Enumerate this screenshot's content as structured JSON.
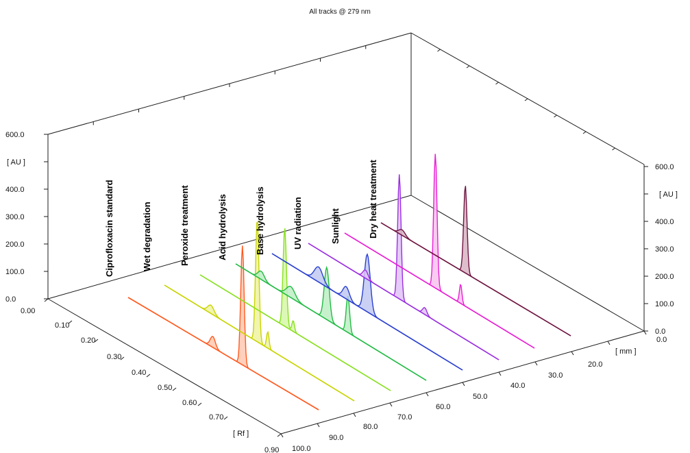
{
  "chart_data": {
    "type": "line",
    "title": "All tracks @ 279 nm",
    "y_axis": {
      "unit_label": "[ AU ]",
      "ticks": [
        "0.0",
        "100.0",
        "200.0",
        "300.0",
        "400.0",
        "600.0"
      ],
      "right_ticks": [
        "0.0",
        "100.0",
        "200.0",
        "300.0",
        "400.0",
        "600.0"
      ],
      "ylim": [
        0,
        600
      ]
    },
    "rf_axis": {
      "unit_label": "[ Rf ]",
      "ticks": [
        "0.00",
        "0.10",
        "0.20",
        "0.30",
        "0.40",
        "0.50",
        "0.60",
        "0.70",
        "0.90"
      ],
      "xlim": [
        0,
        0.9
      ]
    },
    "mm_axis": {
      "unit_label": "[ mm ]",
      "ticks": [
        "0.0",
        "20.0",
        "30.0",
        "40.0",
        "50.0",
        "60.0",
        "70.0",
        "80.0",
        "90.0",
        "100.0"
      ],
      "zlim": [
        0,
        100
      ]
    },
    "series": [
      {
        "name": "Ciprofloxacin standard",
        "color": "#ff5a1f",
        "fill": "#ffc8b0",
        "peaks": [
          {
            "rf": 0.4,
            "height": 40,
            "width": 0.012
          },
          {
            "rf": 0.54,
            "height": 435,
            "width": 0.008
          }
        ]
      },
      {
        "name": "Wet degradation",
        "color": "#c8d400",
        "fill": "#eef3a0",
        "peaks": [
          {
            "rf": 0.22,
            "height": 30,
            "width": 0.015
          },
          {
            "rf": 0.44,
            "height": 450,
            "width": 0.008
          },
          {
            "rf": 0.49,
            "height": 60,
            "width": 0.006
          }
        ]
      },
      {
        "name": "Peroxide treatment",
        "color": "#88e020",
        "fill": "#d6f7a8",
        "peaks": [
          {
            "rf": 0.4,
            "height": 360,
            "width": 0.008
          },
          {
            "rf": 0.44,
            "height": 40,
            "width": 0.006
          }
        ]
      },
      {
        "name": "Acid hydrolysis",
        "color": "#22bb44",
        "fill": "#bdeec4",
        "peaks": [
          {
            "rf": 0.12,
            "height": 30,
            "width": 0.015
          },
          {
            "rf": 0.26,
            "height": 40,
            "width": 0.02
          },
          {
            "rf": 0.43,
            "height": 190,
            "width": 0.012
          },
          {
            "rf": 0.53,
            "height": 135,
            "width": 0.008
          }
        ]
      },
      {
        "name": "Base hydrolysis",
        "color": "#2a3fd0",
        "fill": "#c0c8f2",
        "peaks": [
          {
            "rf": 0.22,
            "height": 55,
            "width": 0.02
          },
          {
            "rf": 0.35,
            "height": 45,
            "width": 0.015
          },
          {
            "rf": 0.45,
            "height": 210,
            "width": 0.014
          }
        ]
      },
      {
        "name": "UV radiation",
        "color": "#9a2ee0",
        "fill": "#e0c2f6",
        "peaks": [
          {
            "rf": 0.27,
            "height": 30,
            "width": 0.012
          },
          {
            "rf": 0.43,
            "height": 455,
            "width": 0.008
          },
          {
            "rf": 0.55,
            "height": 25,
            "width": 0.01
          }
        ]
      },
      {
        "name": "Sunlight",
        "color": "#e81ed3",
        "fill": "#f8c2ef",
        "peaks": [
          {
            "rf": 0.43,
            "height": 490,
            "width": 0.008
          },
          {
            "rf": 0.55,
            "height": 70,
            "width": 0.006
          }
        ]
      },
      {
        "name": "Dry heat treatment",
        "color": "#6e1440",
        "fill": "#d9b3c3",
        "peaks": [
          {
            "rf": 0.1,
            "height": 20,
            "width": 0.015
          },
          {
            "rf": 0.4,
            "height": 320,
            "width": 0.008
          }
        ]
      }
    ]
  }
}
